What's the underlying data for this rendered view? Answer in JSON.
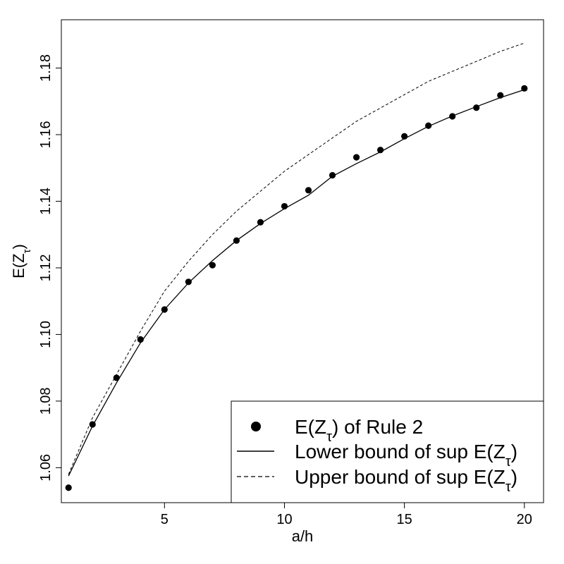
{
  "chart_data": {
    "type": "scatter",
    "xlabel": "a/h",
    "ylabel": {
      "main": "E(Z",
      "sub": "τ",
      "tail": ")"
    },
    "xlim": [
      0.7,
      20.8
    ],
    "ylim": [
      1.0495,
      1.1945
    ],
    "x_ticks": [
      5,
      10,
      15,
      20
    ],
    "y_ticks": [
      1.06,
      1.08,
      1.1,
      1.12,
      1.14,
      1.16,
      1.18
    ],
    "y_tick_labels": [
      "1.06",
      "1.08",
      "1.10",
      "1.12",
      "1.14",
      "1.16",
      "1.18"
    ],
    "grid": false,
    "legend_position": "bottom-right",
    "series": [
      {
        "label": {
          "main": "E(Z",
          "sub": "τ",
          "tail": ") of Rule 2"
        },
        "style": "points",
        "x": [
          1,
          2,
          3,
          4,
          5,
          6,
          7,
          8,
          9,
          10,
          11,
          12,
          13,
          14,
          15,
          16,
          17,
          18,
          19,
          20
        ],
        "y": [
          1.054,
          1.073,
          1.087,
          1.0985,
          1.1075,
          1.1158,
          1.1208,
          1.1282,
          1.1337,
          1.1385,
          1.1433,
          1.1478,
          1.1532,
          1.1554,
          1.1595,
          1.1627,
          1.1655,
          1.1681,
          1.1718,
          1.1739
        ]
      },
      {
        "label": {
          "main": "Lower bound of sup E(Z",
          "sub": "τ",
          "tail": ")"
        },
        "style": "solid",
        "x": [
          1,
          2,
          3,
          4,
          5,
          6,
          7,
          8,
          9,
          10,
          11,
          12,
          13,
          14,
          15,
          16,
          17,
          18,
          19,
          20
        ],
        "y": [
          1.0575,
          1.0725,
          1.0855,
          1.0975,
          1.1075,
          1.1155,
          1.1222,
          1.1282,
          1.1333,
          1.1378,
          1.1418,
          1.1475,
          1.1513,
          1.1548,
          1.1588,
          1.1625,
          1.1656,
          1.1684,
          1.1711,
          1.1735
        ]
      },
      {
        "label": {
          "main": "Upper bound of sup E(Z",
          "sub": "τ",
          "tail": ")"
        },
        "style": "dashed",
        "x": [
          1,
          2,
          3,
          4,
          5,
          6,
          7,
          8,
          9,
          10,
          11,
          12,
          13,
          14,
          15,
          16,
          17,
          18,
          19,
          20
        ],
        "y": [
          1.058,
          1.075,
          1.088,
          1.101,
          1.113,
          1.122,
          1.13,
          1.137,
          1.143,
          1.149,
          1.154,
          1.159,
          1.164,
          1.168,
          1.172,
          1.176,
          1.179,
          1.182,
          1.185,
          1.1875
        ]
      }
    ]
  }
}
